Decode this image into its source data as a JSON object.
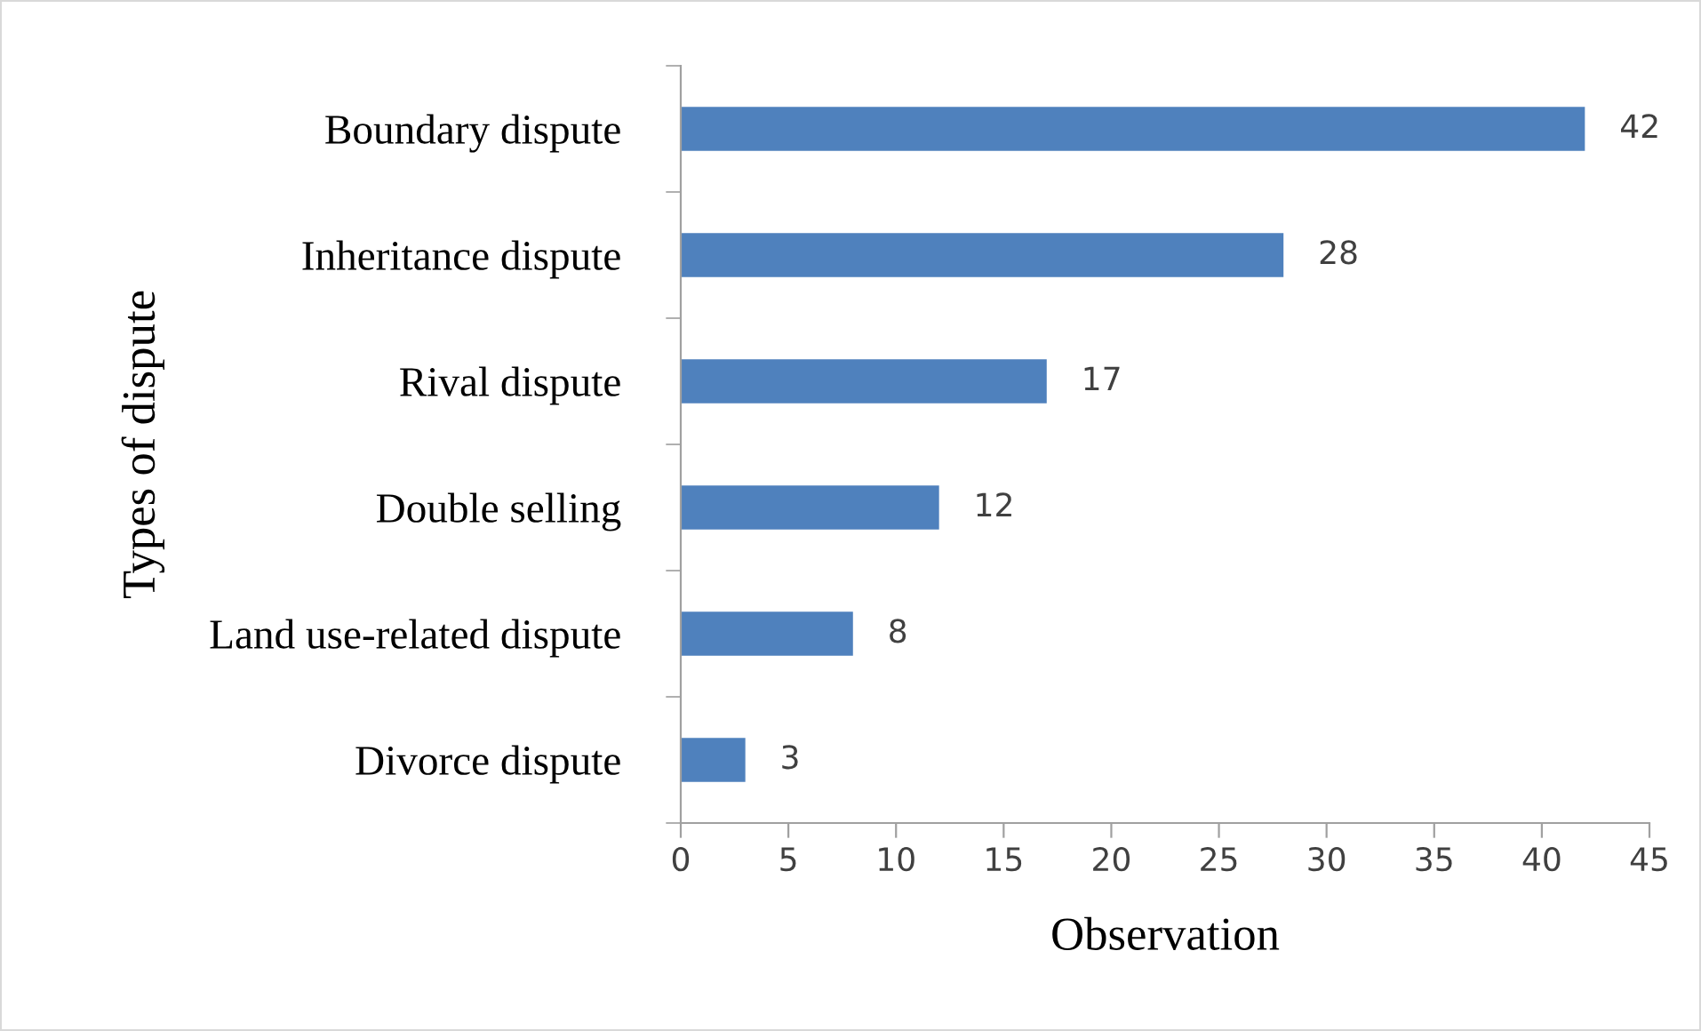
{
  "chart_data": {
    "type": "bar",
    "orientation": "horizontal",
    "xlabel": "Observation",
    "ylabel": "Types of dispute",
    "categories": [
      "Boundary dispute",
      "Inheritance dispute",
      "Rival dispute",
      "Double selling",
      "Land use-related dispute",
      "Divorce dispute"
    ],
    "values": [
      42,
      28,
      17,
      12,
      8,
      3
    ],
    "color": "#4f81bd",
    "xlim": [
      0,
      45
    ],
    "xticks": [
      0,
      5,
      10,
      15,
      20,
      25,
      30,
      35,
      40,
      45
    ],
    "grid": false,
    "data_labels": true
  }
}
